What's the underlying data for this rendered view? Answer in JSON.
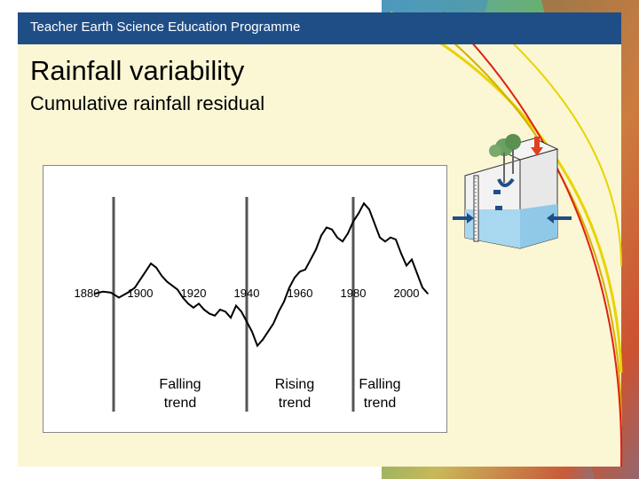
{
  "header": {
    "title": "Teacher Earth Science Education Programme",
    "bar_color": "#1f4e87"
  },
  "slide": {
    "title": "Rainfall variability",
    "subtitle": "Cumulative rainfall residual",
    "background": "#fbf6d4"
  },
  "decor": {
    "background": "relief-map",
    "arc_colors": [
      "#e8d400",
      "#d4b000",
      "#e02010"
    ]
  },
  "chart_data": {
    "type": "line",
    "xlabel": "",
    "ylabel": "",
    "x_ticks": [
      1880,
      1900,
      1920,
      1940,
      1960,
      1980,
      2000
    ],
    "xlim": [
      1870,
      2010
    ],
    "ylim": [
      -100,
      100
    ],
    "series": [
      {
        "values": [
          [
            1883,
            0
          ],
          [
            1886,
            2
          ],
          [
            1889,
            1
          ],
          [
            1892,
            -4
          ],
          [
            1894,
            -1
          ],
          [
            1896,
            2
          ],
          [
            1898,
            6
          ],
          [
            1900,
            14
          ],
          [
            1902,
            22
          ],
          [
            1904,
            30
          ],
          [
            1906,
            26
          ],
          [
            1908,
            18
          ],
          [
            1910,
            12
          ],
          [
            1912,
            8
          ],
          [
            1914,
            4
          ],
          [
            1916,
            -4
          ],
          [
            1918,
            -10
          ],
          [
            1920,
            -14
          ],
          [
            1922,
            -10
          ],
          [
            1924,
            -16
          ],
          [
            1926,
            -20
          ],
          [
            1928,
            -22
          ],
          [
            1930,
            -16
          ],
          [
            1932,
            -18
          ],
          [
            1934,
            -24
          ],
          [
            1936,
            -12
          ],
          [
            1938,
            -18
          ],
          [
            1940,
            -28
          ],
          [
            1942,
            -38
          ],
          [
            1944,
            -52
          ],
          [
            1946,
            -46
          ],
          [
            1948,
            -38
          ],
          [
            1950,
            -30
          ],
          [
            1952,
            -18
          ],
          [
            1954,
            -8
          ],
          [
            1956,
            6
          ],
          [
            1958,
            16
          ],
          [
            1960,
            22
          ],
          [
            1962,
            24
          ],
          [
            1964,
            34
          ],
          [
            1966,
            44
          ],
          [
            1968,
            58
          ],
          [
            1970,
            66
          ],
          [
            1972,
            64
          ],
          [
            1974,
            56
          ],
          [
            1976,
            52
          ],
          [
            1978,
            60
          ],
          [
            1980,
            72
          ],
          [
            1982,
            80
          ],
          [
            1984,
            90
          ],
          [
            1986,
            84
          ],
          [
            1988,
            70
          ],
          [
            1990,
            56
          ],
          [
            1992,
            52
          ],
          [
            1994,
            56
          ],
          [
            1996,
            54
          ],
          [
            1998,
            40
          ],
          [
            2000,
            28
          ],
          [
            2002,
            34
          ],
          [
            2004,
            20
          ],
          [
            2006,
            6
          ],
          [
            2008,
            0
          ]
        ]
      }
    ],
    "dividers": [
      1890,
      1940,
      1980
    ],
    "annotations": [
      {
        "label": [
          "Falling",
          "trend"
        ],
        "x": 1915
      },
      {
        "label": [
          "Rising",
          "trend"
        ],
        "x": 1958
      },
      {
        "label": [
          "Falling",
          "trend"
        ],
        "x": 1990
      }
    ],
    "line_color": "#000000",
    "divider_color": "#555555"
  }
}
